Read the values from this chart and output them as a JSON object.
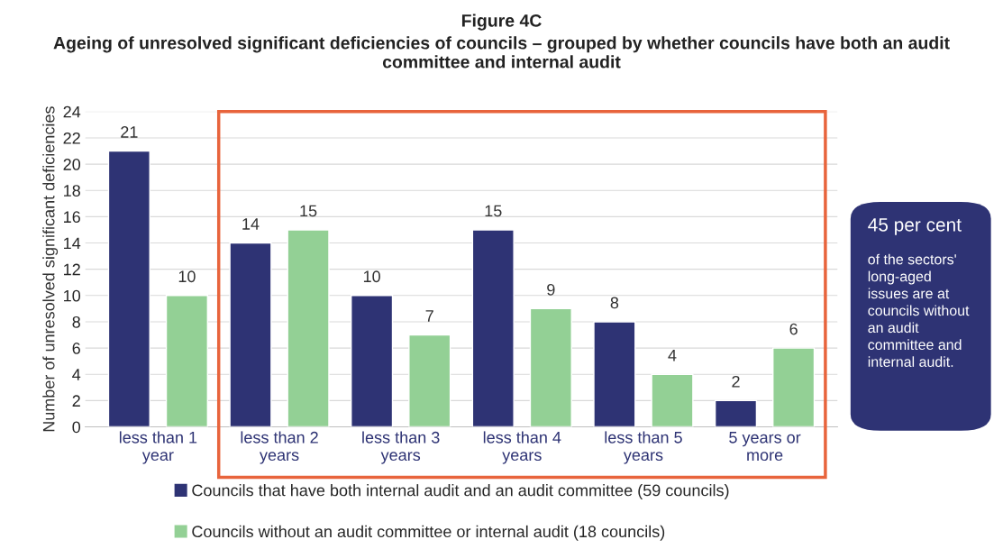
{
  "chart_data": {
    "type": "bar",
    "title": "Figure 4C",
    "subtitle": "Ageing of unresolved significant deficiencies of councils – grouped by whether councils have both an audit committee and internal audit",
    "ylabel": "Number of unresolved significant deficiencies",
    "categories": [
      "less than 1\nyear",
      "less than 2\nyears",
      "less than 3\nyears",
      "less than 4\nyears",
      "less than 5\nyears",
      "5 years or\nmore"
    ],
    "series": [
      {
        "name": "Councils that have both internal audit and an audit committee (59 councils)",
        "color": "#2e3374",
        "values": [
          21,
          14,
          10,
          15,
          8,
          2
        ]
      },
      {
        "name": "Councils without an audit committee or internal audit (18 councils)",
        "color": "#93d095",
        "values": [
          10,
          15,
          7,
          9,
          4,
          6
        ]
      }
    ],
    "ylim": [
      0,
      24
    ],
    "yticks": [
      0,
      2,
      4,
      6,
      8,
      10,
      12,
      14,
      16,
      18,
      20,
      22,
      24
    ],
    "grid": "y",
    "legend": "bottom",
    "data_labels": true,
    "annotations": [
      "45 per cent",
      "of the sectors' long-aged issues are at councils without an audit committee and internal audit."
    ]
  }
}
